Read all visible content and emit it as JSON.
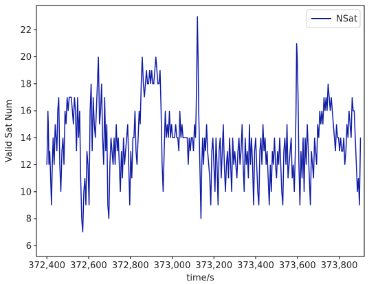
{
  "chart_data": {
    "type": "line",
    "xlabel": "time/s",
    "ylabel": "Valid Sat Num",
    "xlim": [
      372350,
      373920
    ],
    "ylim": [
      5.2,
      23.8
    ],
    "x_ticks": [
      372400,
      372600,
      372800,
      373000,
      373200,
      373400,
      373600,
      373800
    ],
    "x_tick_labels": [
      "372,400",
      "372,600",
      "372,800",
      "373,000",
      "373,200",
      "373,400",
      "373,600",
      "373,800"
    ],
    "y_ticks": [
      6,
      8,
      10,
      12,
      14,
      16,
      18,
      20,
      22
    ],
    "y_tick_labels": [
      "6",
      "8",
      "10",
      "12",
      "14",
      "16",
      "18",
      "20",
      "22"
    ],
    "grid": false,
    "legend": "top-right",
    "series": [
      {
        "name": "NSat",
        "legend_color": "#0b1f7a",
        "colors": [
          "#0b1f7a",
          "#1414e6"
        ],
        "x": [
          372400,
          372403,
          372405,
          372407,
          372410,
          372414,
          372418,
          372422,
          372426,
          372430,
          372435,
          372440,
          372444,
          372448,
          372452,
          372457,
          372462,
          372467,
          372472,
          372477,
          372482,
          372487,
          372492,
          372497,
          372502,
          372507,
          372512,
          372517,
          372522,
          372527,
          372532,
          372537,
          372542,
          372547,
          372552,
          372557,
          372562,
          372567,
          372572,
          372577,
          372582,
          372587,
          372592,
          372597,
          372602,
          372607,
          372612,
          372617,
          372622,
          372627,
          372632,
          372637,
          372642,
          372647,
          372652,
          372657,
          372662,
          372667,
          372672,
          372677,
          372682,
          372687,
          372692,
          372697,
          372702,
          372707,
          372712,
          372717,
          372722,
          372727,
          372732,
          372737,
          372742,
          372747,
          372752,
          372757,
          372762,
          372767,
          372772,
          372777,
          372782,
          372787,
          372792,
          372797,
          372802,
          372807,
          372812,
          372817,
          372822,
          372827,
          372832,
          372837,
          372842,
          372847,
          372852,
          372857,
          372862,
          372867,
          372872,
          372877,
          372882,
          372887,
          372892,
          372897,
          372902,
          372907,
          372912,
          372917,
          372922,
          372927,
          372932,
          372937,
          372942,
          372947,
          372952,
          372957,
          372962,
          372967,
          372972,
          372977,
          372982,
          372987,
          372992,
          372997,
          373002,
          373007,
          373012,
          373017,
          373022,
          373027,
          373032,
          373037,
          373042,
          373047,
          373052,
          373057,
          373062,
          373067,
          373072,
          373077,
          373082,
          373087,
          373092,
          373097,
          373102,
          373107,
          373112,
          373115,
          373118,
          373121,
          373124,
          373127,
          373130,
          373134,
          373138,
          373142,
          373146,
          373150,
          373155,
          373160,
          373165,
          373170,
          373175,
          373180,
          373185,
          373190,
          373195,
          373200,
          373205,
          373210,
          373215,
          373220,
          373225,
          373230,
          373235,
          373240,
          373245,
          373250,
          373255,
          373260,
          373265,
          373270,
          373275,
          373280,
          373285,
          373290,
          373295,
          373300,
          373305,
          373310,
          373315,
          373320,
          373325,
          373330,
          373335,
          373340,
          373345,
          373350,
          373355,
          373360,
          373365,
          373370,
          373375,
          373380,
          373385,
          373390,
          373395,
          373400,
          373405,
          373410,
          373415,
          373420,
          373425,
          373430,
          373435,
          373440,
          373445,
          373450,
          373455,
          373460,
          373465,
          373470,
          373475,
          373480,
          373485,
          373490,
          373495,
          373500,
          373505,
          373510,
          373515,
          373520,
          373525,
          373530,
          373535,
          373540,
          373545,
          373550,
          373555,
          373560,
          373565,
          373570,
          373575,
          373580,
          373585,
          373590,
          373593,
          373596,
          373599,
          373603,
          373607,
          373612,
          373617,
          373622,
          373627,
          373632,
          373637,
          373642,
          373647,
          373652,
          373657,
          373662,
          373667,
          373672,
          373677,
          373682,
          373687,
          373692,
          373697,
          373702,
          373707,
          373712,
          373717,
          373722,
          373727,
          373732,
          373737,
          373742,
          373747,
          373752,
          373757,
          373762,
          373767,
          373772,
          373777,
          373782,
          373787,
          373792,
          373797,
          373802,
          373807,
          373812,
          373817,
          373822,
          373827,
          373832,
          373837,
          373842,
          373847,
          373852,
          373857,
          373862,
          373867,
          373872,
          373877,
          373882,
          373887,
          373892,
          373897,
          373902
        ],
        "y": [
          12,
          14,
          16,
          15,
          12,
          13,
          11,
          9,
          12,
          14,
          12,
          15,
          14,
          13,
          16,
          17,
          12,
          10,
          13,
          14,
          12,
          16,
          15,
          17,
          16,
          17,
          17,
          17,
          16,
          15,
          17,
          16,
          13,
          17,
          14,
          16,
          11,
          8,
          7,
          10,
          11,
          9,
          13,
          12,
          9,
          16,
          18,
          13,
          17,
          15,
          14,
          16,
          18,
          20,
          15,
          16,
          18,
          14,
          12,
          17,
          13,
          15,
          9,
          8,
          12,
          14,
          13,
          12,
          14,
          12,
          15,
          13,
          14,
          12,
          10,
          13,
          11,
          14,
          12,
          13,
          14,
          15,
          12,
          9,
          13,
          11,
          14,
          14,
          16,
          13,
          12,
          14,
          16,
          15,
          18,
          20,
          18,
          17,
          18,
          19,
          18,
          18,
          19,
          18,
          19,
          18,
          18,
          19,
          20,
          19,
          18,
          18,
          19,
          16,
          12,
          10,
          13,
          16,
          14,
          15,
          14,
          16,
          14,
          15,
          14,
          14,
          14,
          15,
          14,
          14,
          13,
          16,
          14,
          15,
          14,
          14,
          14,
          14,
          14,
          12,
          14,
          13,
          14,
          14,
          13,
          15,
          14,
          16,
          19,
          23,
          20,
          16,
          14,
          11,
          8,
          12,
          14,
          12,
          14,
          13,
          15,
          13,
          12,
          11,
          9,
          13,
          14,
          12,
          10,
          14,
          12,
          9,
          13,
          14,
          11,
          13,
          15,
          12,
          10,
          12,
          13,
          11,
          14,
          12,
          10,
          14,
          12,
          13,
          12,
          11,
          13,
          14,
          12,
          13,
          15,
          12,
          10,
          14,
          12,
          13,
          11,
          15,
          12,
          14,
          12,
          9,
          13,
          14,
          12,
          10,
          9,
          13,
          14,
          12,
          15,
          13,
          14,
          12,
          13,
          11,
          9,
          12,
          10,
          13,
          12,
          14,
          12,
          11,
          13,
          12,
          14,
          12,
          10,
          9,
          13,
          14,
          12,
          15,
          11,
          12,
          13,
          14,
          11,
          12,
          10,
          13,
          16,
          21,
          20,
          17,
          12,
          9,
          13,
          11,
          14,
          10,
          14,
          12,
          15,
          13,
          11,
          9,
          13,
          12,
          11,
          14,
          13,
          12,
          15,
          14,
          16,
          15,
          16,
          15,
          17,
          16,
          17,
          16,
          18,
          17,
          16,
          17,
          16,
          15,
          14,
          13,
          15,
          14,
          14,
          13,
          14,
          13,
          13,
          14,
          12,
          13,
          15,
          14,
          16,
          15,
          14,
          17,
          16,
          16,
          14,
          12,
          10,
          11,
          9,
          14
        ]
      }
    ]
  }
}
